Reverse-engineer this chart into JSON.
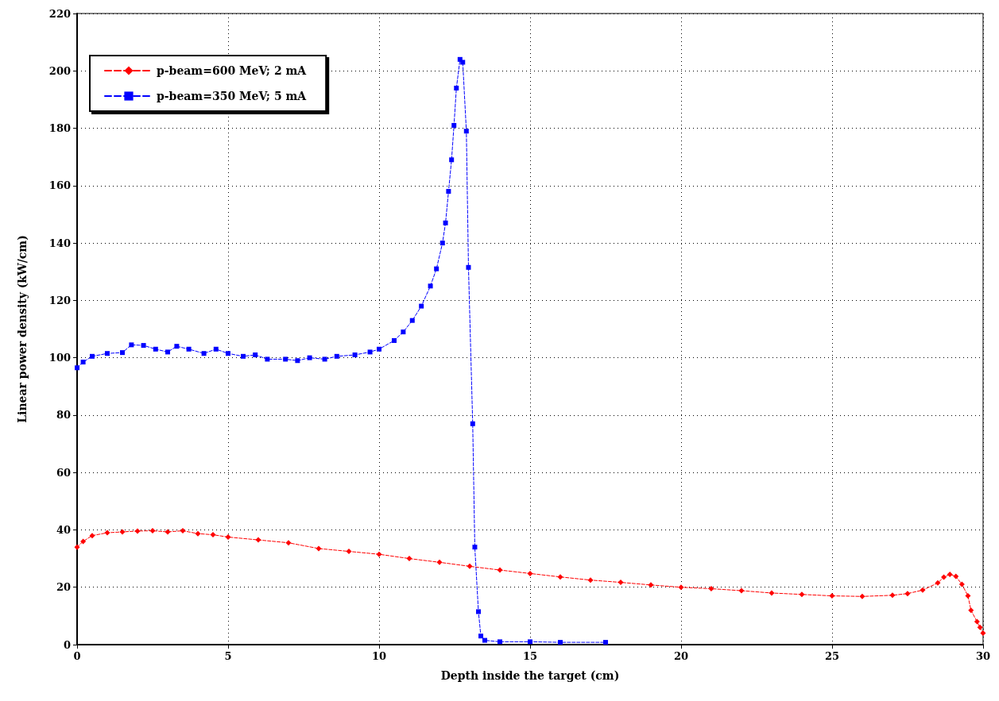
{
  "chart_data": {
    "type": "line",
    "xlabel": "Depth inside the target (cm)",
    "ylabel": "Linear power density (kW/cm)",
    "xlim": [
      0,
      30
    ],
    "xticks": [
      0,
      5,
      10,
      15,
      20,
      25,
      30
    ],
    "ylim": [
      0,
      220
    ],
    "yticks": [
      0,
      20,
      40,
      60,
      80,
      100,
      120,
      140,
      160,
      180,
      200,
      220
    ],
    "grid": true,
    "legend": "top left",
    "line_style": "dashed",
    "series": [
      {
        "name": "p-beam=600 MeV; 2 mA",
        "color": "#ff0000",
        "marker": "diamond",
        "x": [
          0,
          0.2,
          0.5,
          1,
          1.5,
          2,
          2.5,
          3,
          3.5,
          4,
          4.5,
          5,
          6,
          7,
          8,
          9,
          10,
          11,
          12,
          13,
          14,
          15,
          16,
          17,
          18,
          19,
          20,
          21,
          22,
          23,
          24,
          25,
          26,
          27,
          27.5,
          28,
          28.5,
          28.7,
          28.9,
          29.1,
          29.3,
          29.5,
          29.6,
          29.8,
          29.9,
          30
        ],
        "values": [
          34,
          36,
          38,
          39,
          39.3,
          39.6,
          39.7,
          39.3,
          39.7,
          38.7,
          38.3,
          37.5,
          36.5,
          35.5,
          33.5,
          32.5,
          31.5,
          30,
          28.7,
          27.3,
          26,
          24.8,
          23.6,
          22.5,
          21.7,
          20.8,
          20,
          19.5,
          18.8,
          18,
          17.5,
          17,
          16.8,
          17.2,
          17.8,
          19,
          21.5,
          23.5,
          24.5,
          23.8,
          21,
          17,
          12,
          8,
          6,
          4
        ]
      },
      {
        "name": "p-beam=350 MeV; 5 mA",
        "color": "#0000ff",
        "marker": "square",
        "x": [
          0,
          0.2,
          0.5,
          1,
          1.5,
          1.8,
          2.2,
          2.6,
          3,
          3.3,
          3.7,
          4.2,
          4.6,
          5,
          5.5,
          5.9,
          6.3,
          6.9,
          7.3,
          7.7,
          8.2,
          8.6,
          9.2,
          9.7,
          10,
          10.5,
          10.8,
          11.1,
          11.4,
          11.7,
          11.9,
          12.1,
          12.2,
          12.3,
          12.4,
          12.48,
          12.56,
          12.68,
          12.77,
          12.89,
          12.96,
          13.1,
          13.17,
          13.29,
          13.37,
          13.5,
          14,
          15,
          16,
          17.5
        ],
        "values": [
          96.5,
          98.5,
          100.5,
          101.5,
          101.8,
          104.5,
          104.3,
          103,
          102,
          104,
          103,
          101.5,
          103,
          101.5,
          100.5,
          101,
          99.5,
          99.5,
          99,
          100,
          99.5,
          100.5,
          101,
          102,
          103,
          106,
          109,
          113,
          118,
          125,
          131,
          140,
          147,
          158,
          169,
          181,
          194,
          204,
          203,
          179,
          131.5,
          77,
          34,
          11.5,
          3,
          1.5,
          1,
          1,
          0.8,
          0.8
        ]
      }
    ]
  }
}
